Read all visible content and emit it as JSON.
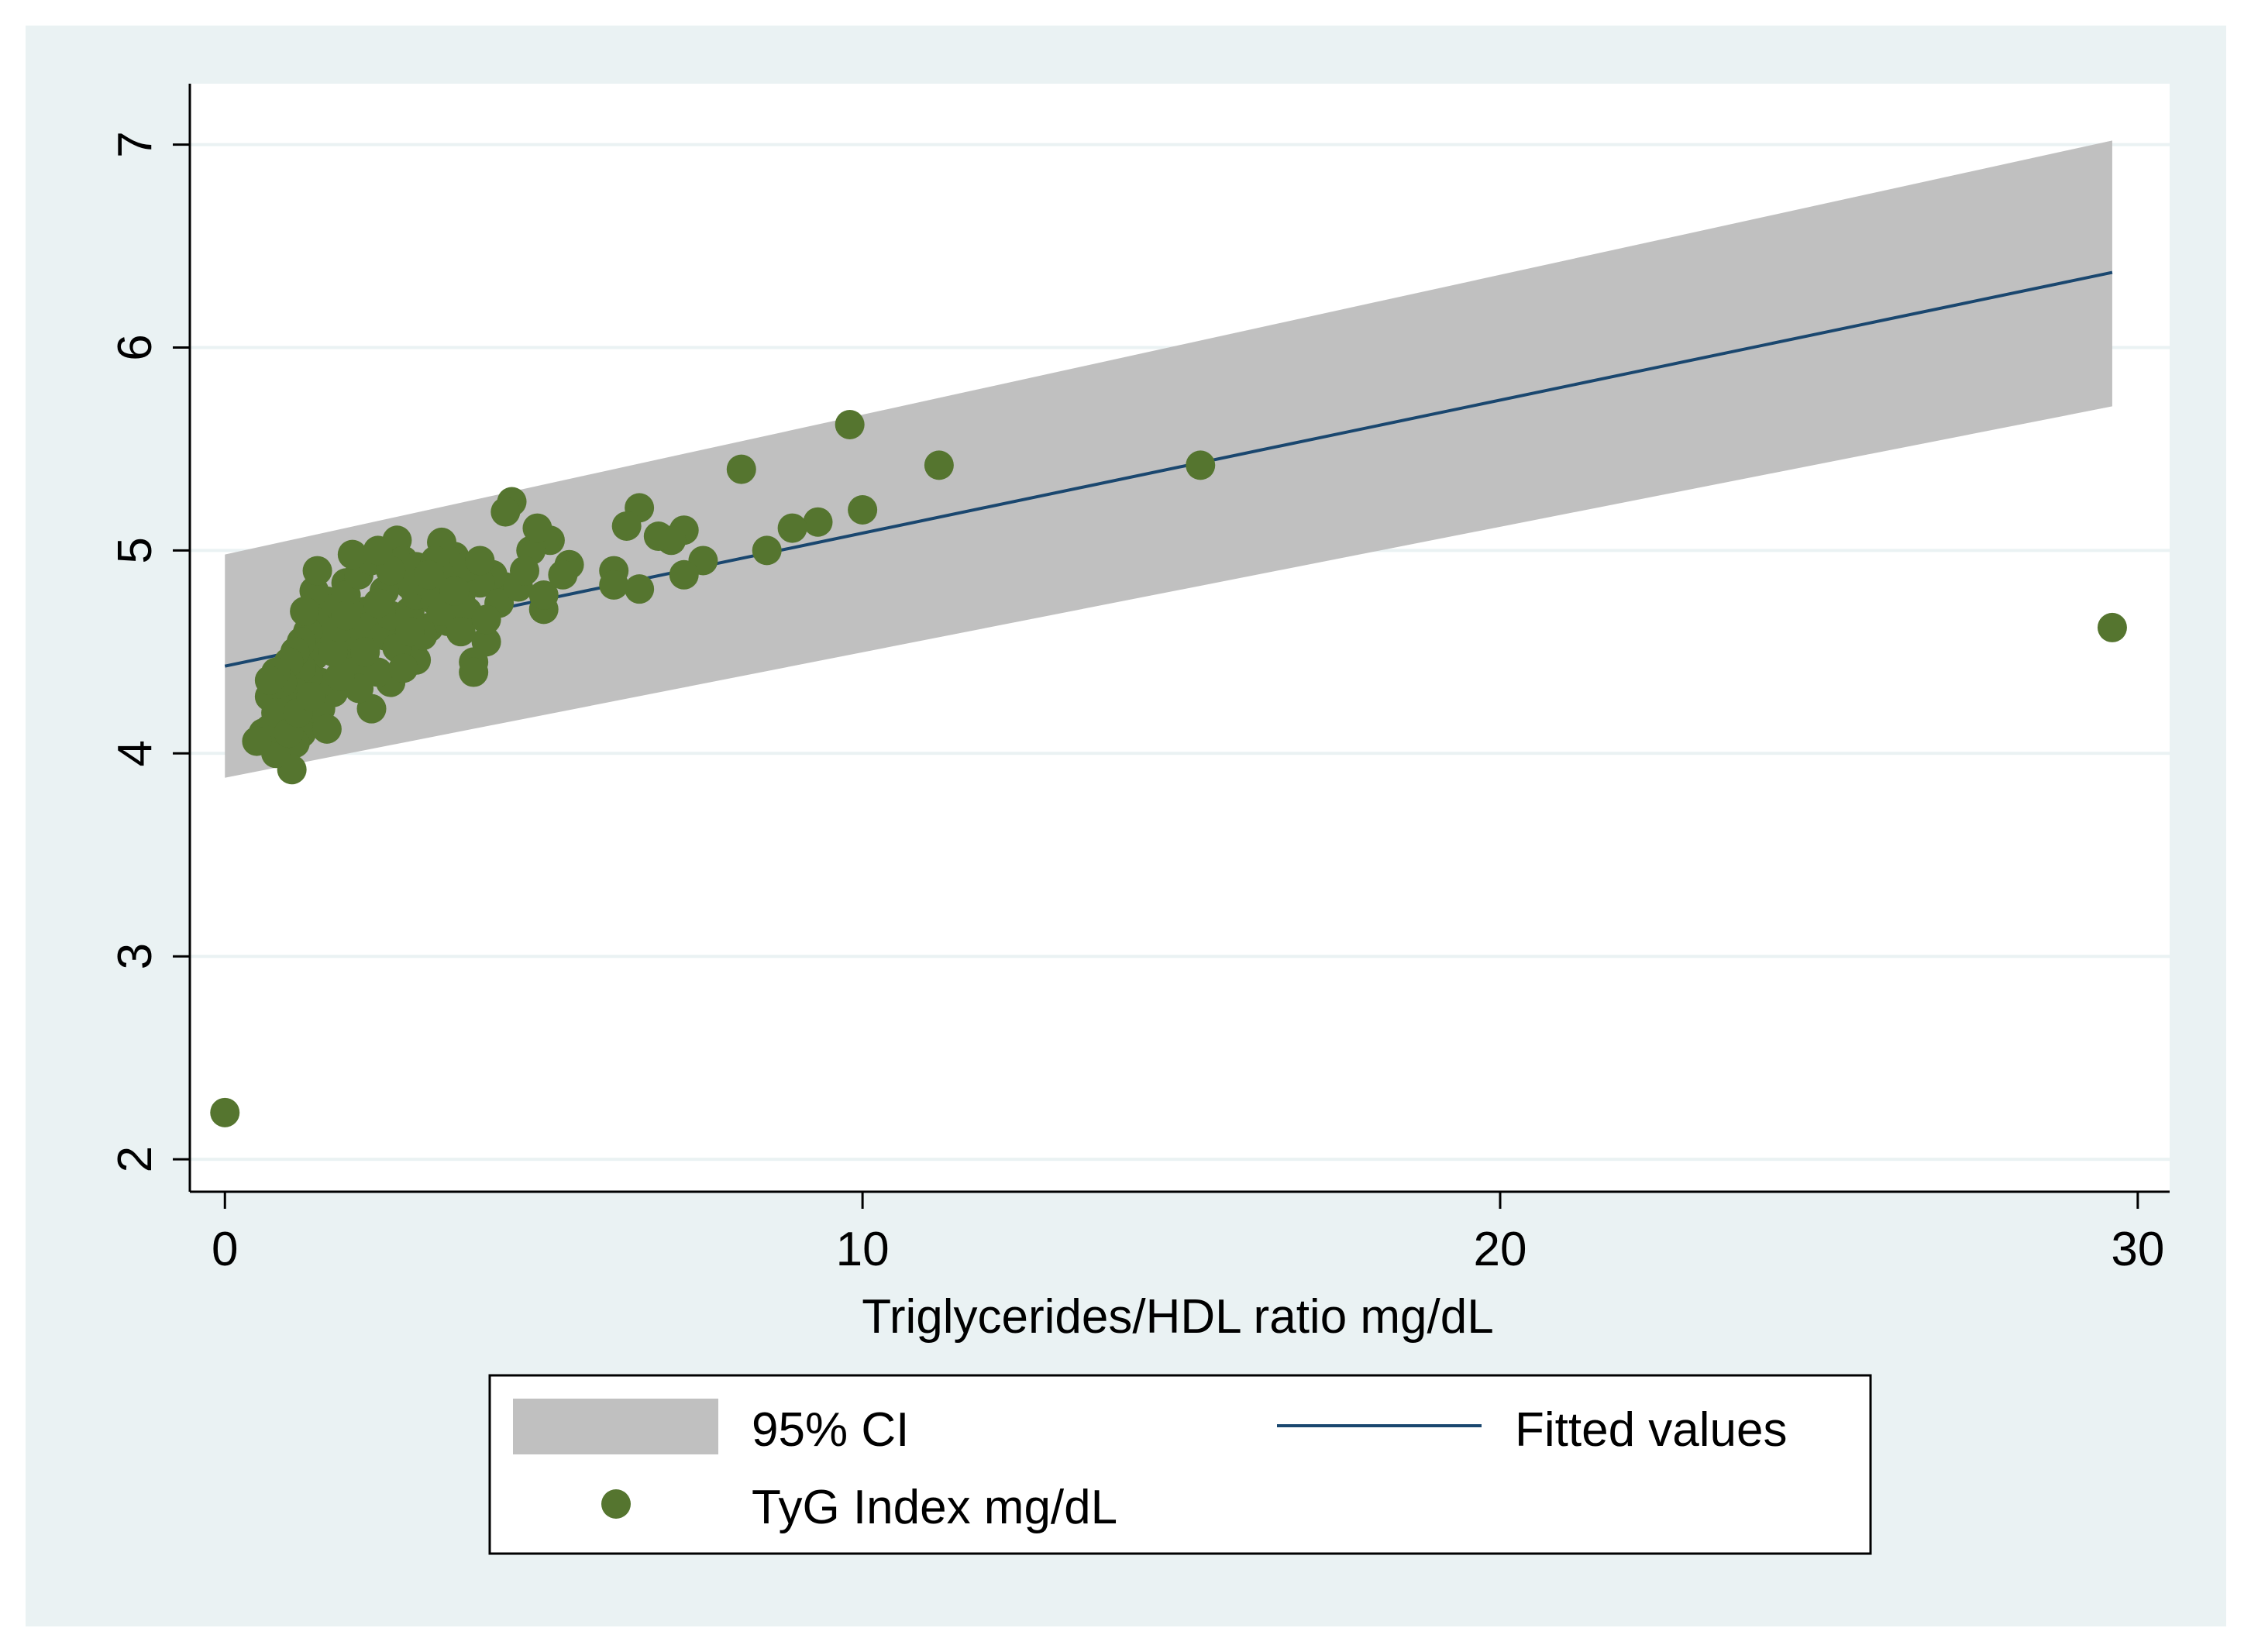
{
  "colors": {
    "outer_background": "#eaf2f3",
    "plot_background": "#ffffff",
    "gridline": "#eaf2f3",
    "ci_band": "#c0c0c0",
    "fitted_line": "#1a476f",
    "marker": "#55752f",
    "axis": "#000000"
  },
  "chart_data": {
    "type": "scatter",
    "title": "",
    "xlabel": "Triglycerides/HDL ratio mg/dL",
    "ylabel": "",
    "xlim": [
      -0.55,
      30.5
    ],
    "ylim": [
      1.84,
      7.3
    ],
    "x_ticks": [
      0,
      10,
      20,
      30
    ],
    "x_tick_labels": [
      "0",
      "10",
      "20",
      "30"
    ],
    "y_ticks": [
      2,
      3,
      4,
      5,
      6,
      7
    ],
    "y_tick_labels": [
      "2",
      "3",
      "4",
      "5",
      "6",
      "7"
    ],
    "grid": true,
    "legend_position": "bottom",
    "series": [
      {
        "name": "95% CI",
        "kind": "band",
        "x": [
          0,
          29.6
        ],
        "lower": [
          3.88,
          5.71
        ],
        "upper": [
          4.98,
          7.02
        ]
      },
      {
        "name": "Fitted values",
        "kind": "line",
        "x": [
          0,
          29.6
        ],
        "y": [
          4.43,
          6.37
        ]
      },
      {
        "name": "TyG Index mg/dL",
        "kind": "scatter",
        "points": [
          [
            0.0,
            2.23
          ],
          [
            29.6,
            4.62
          ],
          [
            15.3,
            5.42
          ],
          [
            9.8,
            5.62
          ],
          [
            11.2,
            5.42
          ],
          [
            8.1,
            5.4
          ],
          [
            10.0,
            5.2
          ],
          [
            9.3,
            5.14
          ],
          [
            8.9,
            5.11
          ],
          [
            8.5,
            5.0
          ],
          [
            7.5,
            4.95
          ],
          [
            7.2,
            4.88
          ],
          [
            7.2,
            5.1
          ],
          [
            7.0,
            5.05
          ],
          [
            6.8,
            5.07
          ],
          [
            6.5,
            5.21
          ],
          [
            6.3,
            5.12
          ],
          [
            6.1,
            4.9
          ],
          [
            6.1,
            4.83
          ],
          [
            6.5,
            4.81
          ],
          [
            5.4,
            4.93
          ],
          [
            5.3,
            4.88
          ],
          [
            5.0,
            4.71
          ],
          [
            5.1,
            5.05
          ],
          [
            4.8,
            5.0
          ],
          [
            4.9,
            5.11
          ],
          [
            4.5,
            5.24
          ],
          [
            4.4,
            5.19
          ],
          [
            4.4,
            4.82
          ],
          [
            4.2,
            4.88
          ],
          [
            4.0,
            4.84
          ],
          [
            4.1,
            4.55
          ],
          [
            3.9,
            4.45
          ],
          [
            3.9,
            4.4
          ],
          [
            3.7,
            4.78
          ],
          [
            3.6,
            4.97
          ],
          [
            3.4,
            5.04
          ],
          [
            3.2,
            4.62
          ],
          [
            3.0,
            4.46
          ],
          [
            2.9,
            4.83
          ],
          [
            2.7,
            5.05
          ],
          [
            2.6,
            4.35
          ],
          [
            2.4,
            4.4
          ],
          [
            2.3,
            4.22
          ],
          [
            2.2,
            4.7
          ],
          [
            2.0,
            4.55
          ],
          [
            2.0,
            4.46
          ],
          [
            1.9,
            4.84
          ],
          [
            1.7,
            4.72
          ],
          [
            1.7,
            4.3
          ],
          [
            1.6,
            4.6
          ],
          [
            1.6,
            4.75
          ],
          [
            1.5,
            4.56
          ],
          [
            1.5,
            4.35
          ],
          [
            1.4,
            4.8
          ],
          [
            1.4,
            4.65
          ],
          [
            1.4,
            4.48
          ],
          [
            1.4,
            4.15
          ],
          [
            1.3,
            4.6
          ],
          [
            1.3,
            4.38
          ],
          [
            1.3,
            4.22
          ],
          [
            1.2,
            4.55
          ],
          [
            1.2,
            4.42
          ],
          [
            1.2,
            4.1
          ],
          [
            1.1,
            4.5
          ],
          [
            1.1,
            4.3
          ],
          [
            1.1,
            4.05
          ],
          [
            1.05,
            3.92
          ],
          [
            1.0,
            4.45
          ],
          [
            1.0,
            4.25
          ],
          [
            0.9,
            4.15
          ],
          [
            0.9,
            4.35
          ],
          [
            0.8,
            4.0
          ],
          [
            0.8,
            4.4
          ],
          [
            0.7,
            4.12
          ],
          [
            0.7,
            4.28
          ],
          [
            0.7,
            4.36
          ],
          [
            0.6,
            4.1
          ],
          [
            0.5,
            4.06
          ],
          [
            0.8,
            4.2
          ],
          [
            1.9,
            4.78
          ],
          [
            2.1,
            4.88
          ],
          [
            2.3,
            4.95
          ],
          [
            2.2,
            4.62
          ],
          [
            2.5,
            4.58
          ],
          [
            2.5,
            4.8
          ],
          [
            2.6,
            4.68
          ],
          [
            2.7,
            4.52
          ],
          [
            2.8,
            4.95
          ],
          [
            2.9,
            4.7
          ],
          [
            3.0,
            4.92
          ],
          [
            3.0,
            4.78
          ],
          [
            3.1,
            4.58
          ],
          [
            3.1,
            4.85
          ],
          [
            3.3,
            4.75
          ],
          [
            3.3,
            4.95
          ],
          [
            3.5,
            4.65
          ],
          [
            3.5,
            4.85
          ],
          [
            3.8,
            4.92
          ],
          [
            3.8,
            4.7
          ],
          [
            4.0,
            4.95
          ],
          [
            4.3,
            4.74
          ],
          [
            4.6,
            4.82
          ],
          [
            4.7,
            4.9
          ],
          [
            5.0,
            4.78
          ],
          [
            2.0,
            4.4
          ],
          [
            2.1,
            4.32
          ],
          [
            1.8,
            4.38
          ],
          [
            1.7,
            4.5
          ],
          [
            1.8,
            4.62
          ],
          [
            1.5,
            4.22
          ],
          [
            1.6,
            4.12
          ],
          [
            1.9,
            4.68
          ],
          [
            2.4,
            4.74
          ],
          [
            2.6,
            4.9
          ],
          [
            2.8,
            4.42
          ],
          [
            3.2,
            4.88
          ],
          [
            3.4,
            4.7
          ],
          [
            1.25,
            4.7
          ],
          [
            1.45,
            4.9
          ],
          [
            2.0,
            4.98
          ],
          [
            2.4,
            5.0
          ],
          [
            1.0,
            4.1
          ],
          [
            1.15,
            4.2
          ],
          [
            1.35,
            4.28
          ],
          [
            3.6,
            4.8
          ],
          [
            3.7,
            4.6
          ],
          [
            4.1,
            4.66
          ],
          [
            2.2,
            4.5
          ],
          [
            2.9,
            4.6
          ]
        ]
      }
    ]
  }
}
